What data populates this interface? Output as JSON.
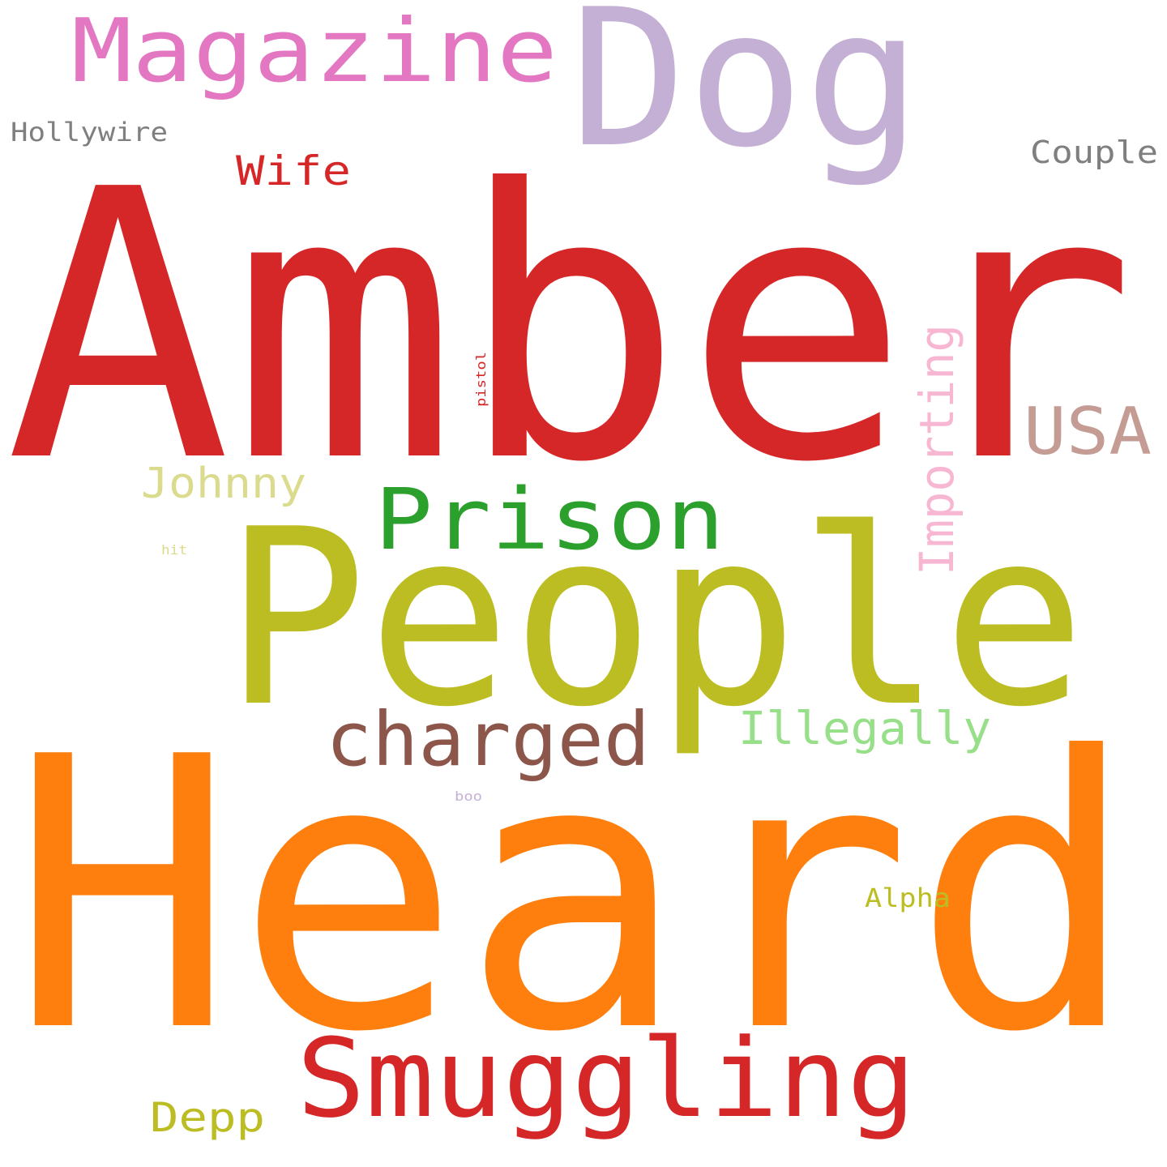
{
  "words": [
    {
      "text": "Heard",
      "color": "#ff7f0e"
    },
    {
      "text": "Amber",
      "color": "#d62728"
    },
    {
      "text": "People",
      "color": "#bcbd22"
    },
    {
      "text": "Dog",
      "color": "#c5b0d5"
    },
    {
      "text": "Smuggling",
      "color": "#d62728"
    },
    {
      "text": "Magazine",
      "color": "#e377c2"
    },
    {
      "text": "Prison",
      "color": "#2ca02c"
    },
    {
      "text": "charged",
      "color": "#8c564b"
    },
    {
      "text": "USA",
      "color": "#c49c94"
    },
    {
      "text": "Importing",
      "color": "#f7b6d2"
    },
    {
      "text": "Illegally",
      "color": "#98df8a"
    },
    {
      "text": "Johnny",
      "color": "#dbdb8d"
    },
    {
      "text": "Wife",
      "color": "#d62728"
    },
    {
      "text": "Depp",
      "color": "#bcbd22"
    },
    {
      "text": "Couple",
      "color": "#7f7f7f"
    },
    {
      "text": "Hollywire",
      "color": "#7f7f7f"
    },
    {
      "text": "Alpha",
      "color": "#bcbd22"
    },
    {
      "text": "pistol",
      "color": "#d62728"
    },
    {
      "text": "hit",
      "color": "#dbdb8d"
    },
    {
      "text": "boo",
      "color": "#c5b0d5"
    }
  ]
}
